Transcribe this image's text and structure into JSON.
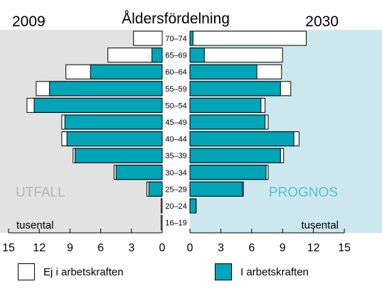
{
  "chart_data": {
    "type": "bar",
    "title": "Åldersfördelning",
    "left_panel": {
      "year": "2009",
      "label": "UTFALL",
      "unit": "tusental"
    },
    "right_panel": {
      "year": "2030",
      "label": "PROGNOS",
      "unit": "tusental"
    },
    "categories": [
      "70–74",
      "65–69",
      "60–64",
      "55–59",
      "50–54",
      "45–49",
      "40–44",
      "35–39",
      "30–34",
      "25–29",
      "20–24",
      "16–19"
    ],
    "series": [
      {
        "name": "Ej i arbetskraften",
        "color": "#ffffff"
      },
      {
        "name": "I arbetskraften",
        "color": "#00a5b8"
      }
    ],
    "left_data": {
      "labour_force": [
        0,
        1.0,
        7.0,
        11.0,
        12.5,
        9.5,
        9.3,
        8.5,
        4.5,
        1.3,
        0,
        0
      ],
      "total": [
        2.8,
        5.3,
        9.4,
        12.3,
        13.2,
        9.8,
        9.8,
        8.7,
        4.7,
        1.5,
        0.1,
        0.1
      ]
    },
    "right_data": {
      "labour_force": [
        0.3,
        1.4,
        6.5,
        8.8,
        6.9,
        7.3,
        10.1,
        8.8,
        7.4,
        5.1,
        0.6,
        0
      ],
      "total": [
        11.3,
        9.0,
        8.9,
        9.8,
        7.3,
        7.6,
        10.6,
        9.1,
        7.6,
        5.2,
        0.6,
        0
      ]
    },
    "xlim": [
      0,
      15
    ],
    "xticks": [
      "15",
      "12",
      "9",
      "6",
      "3",
      "0",
      "0",
      "3",
      "6",
      "9",
      "12",
      "15"
    ],
    "colors": {
      "left_bg": "#e2e2e2",
      "right_bg": "#cce8ee",
      "labour": "#00a5b8",
      "outside": "#ffffff",
      "utfall_text": "#b5b5b5",
      "prognos_text": "#57c1d1"
    }
  },
  "legend": {
    "outside_label": "Ej i arbetskraften",
    "labour_label": "I arbetskraften"
  }
}
